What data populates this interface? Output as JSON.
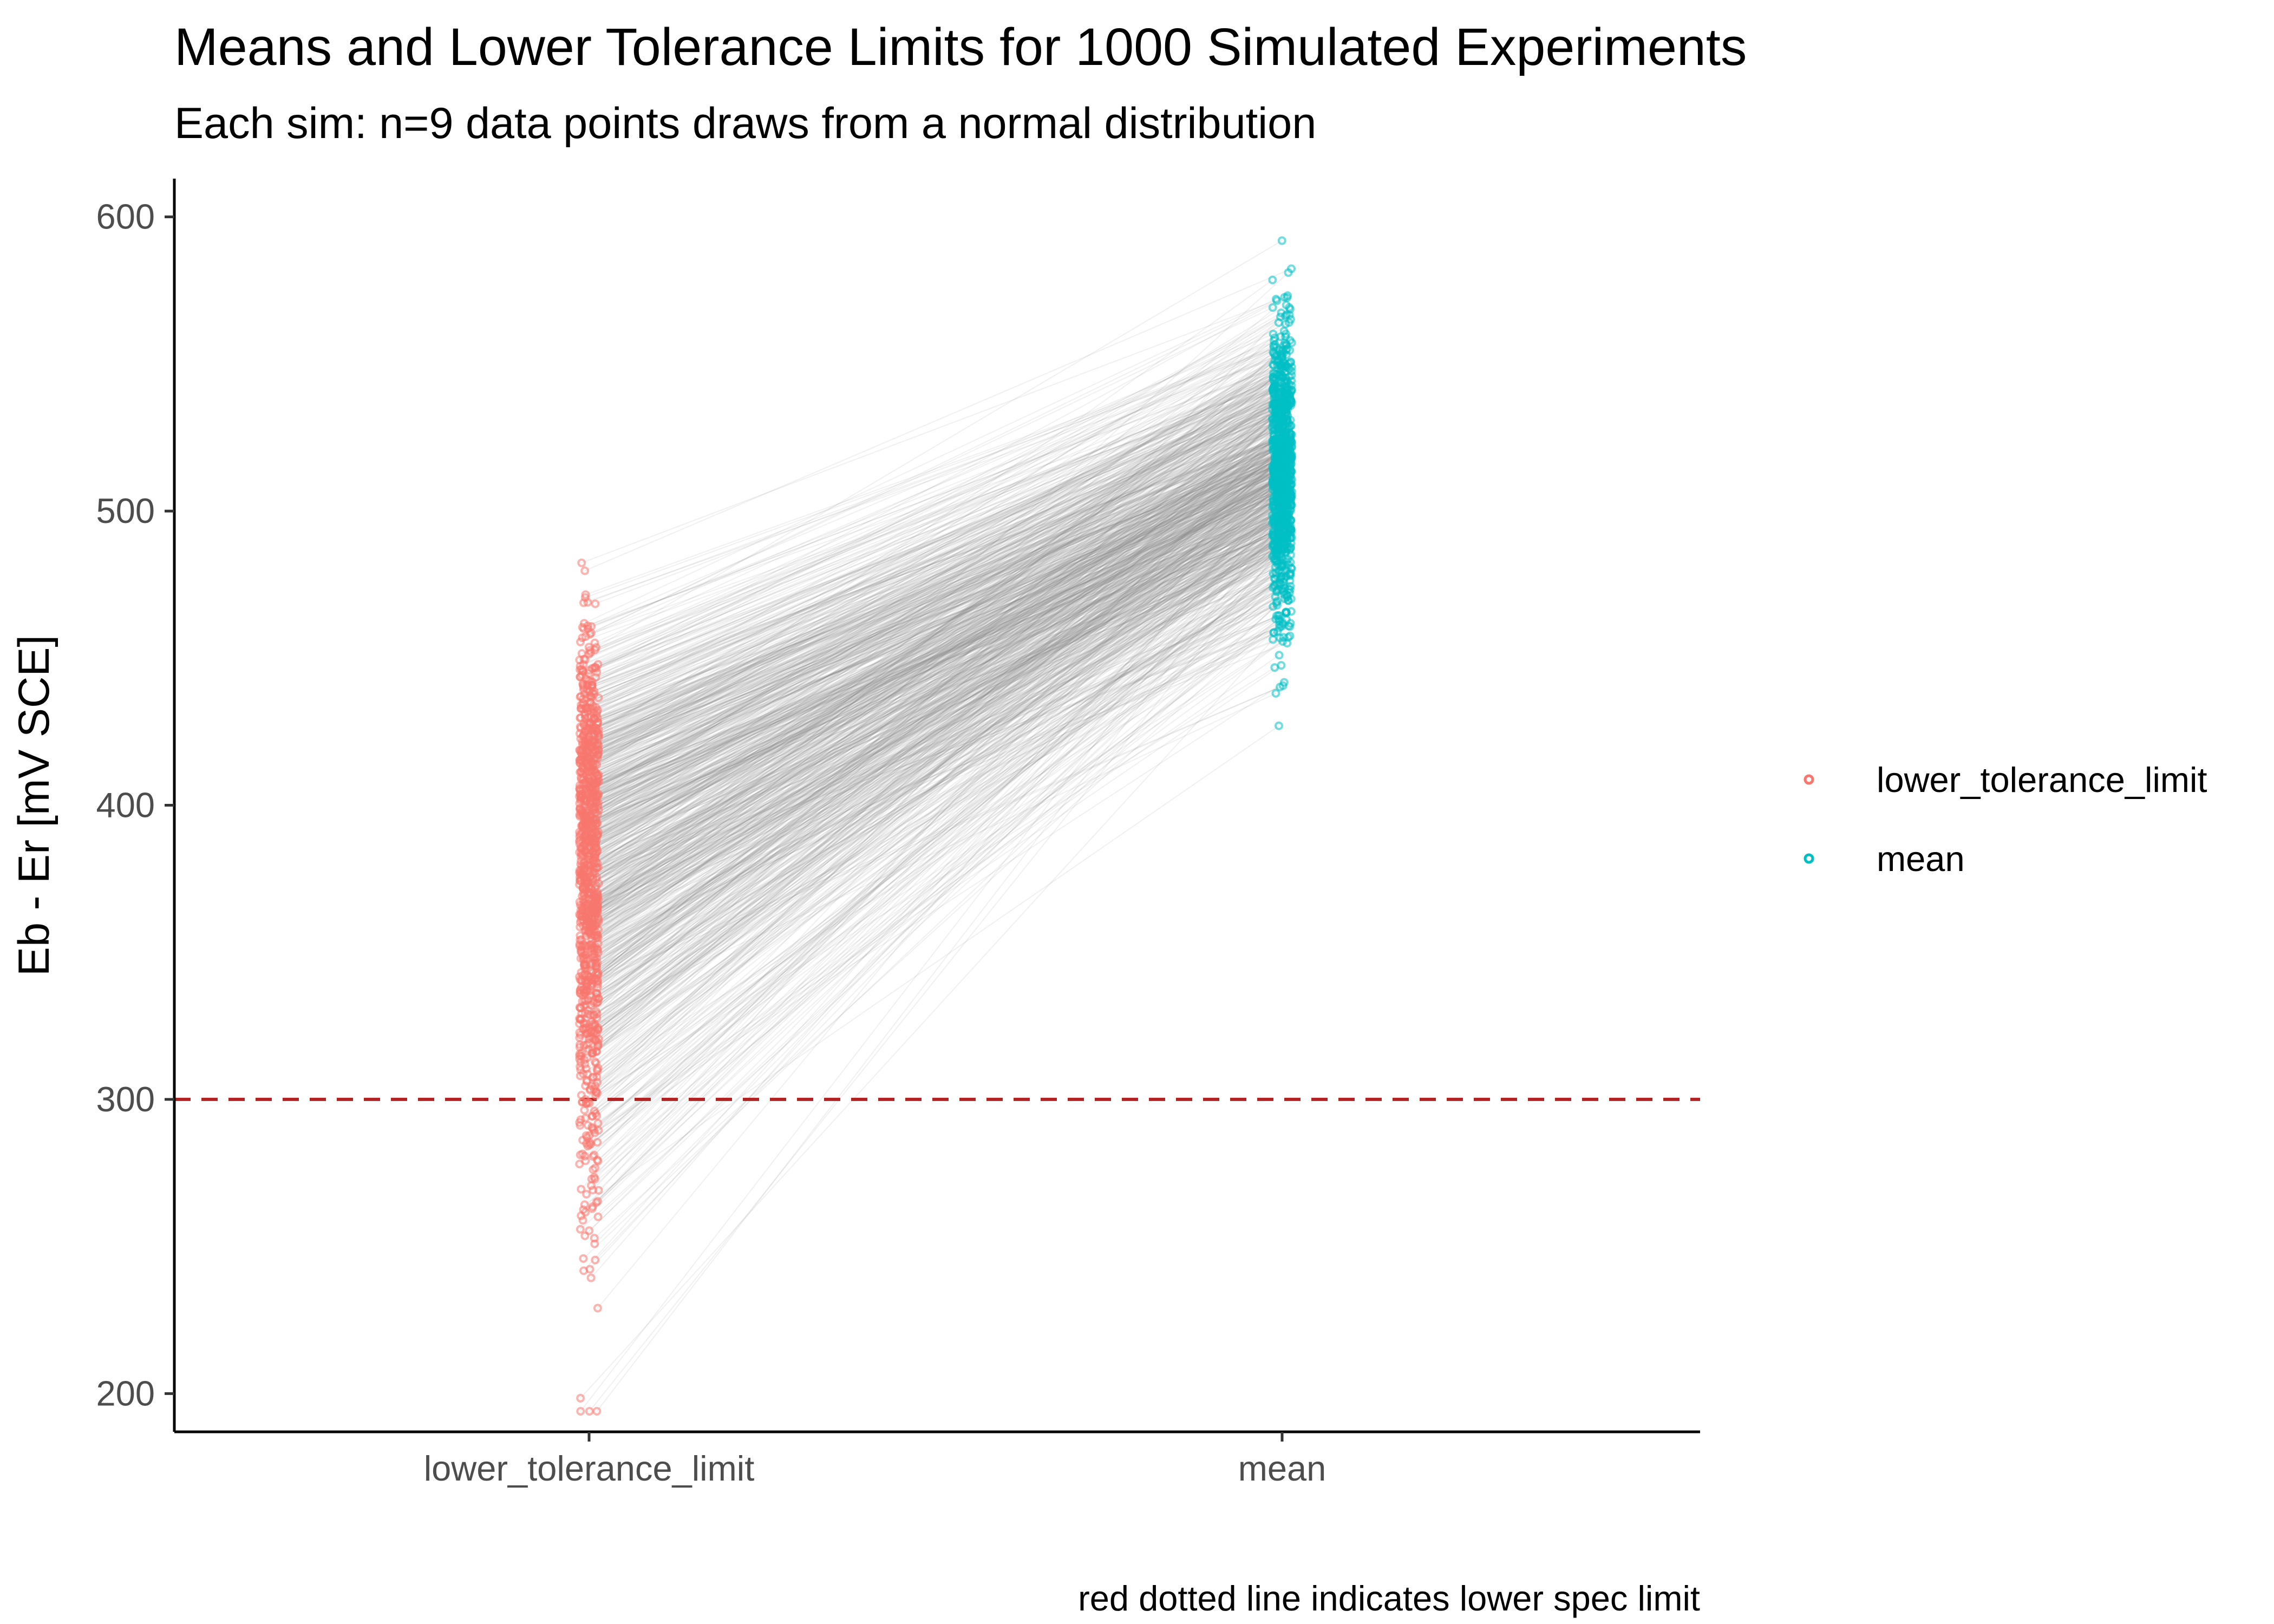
{
  "chart_data": {
    "type": "scatter",
    "title": "Means and Lower Tolerance Limits for 1000 Simulated Experiments",
    "subtitle": "Each sim: n=9 data points draws from a normal distribution",
    "caption": "red dotted line indicates lower spec limit",
    "xlabel": "",
    "ylabel": "Eb - Er [mV SCE]",
    "categories": [
      "lower_tolerance_limit",
      "mean"
    ],
    "y_ticks": [
      200,
      300,
      400,
      500,
      600
    ],
    "ylim": [
      187,
      613
    ],
    "grid": false,
    "legend_position": "right",
    "reference_line": {
      "y": 300,
      "color": "#B22222",
      "style": "dashed"
    },
    "n_simulations": 1000,
    "paired_lines": {
      "color": "#808080",
      "opacity": 0.12
    },
    "series": [
      {
        "name": "lower_tolerance_limit",
        "color": "#F8766D",
        "summary": {
          "approx_center": 355,
          "min": 194,
          "max": 496
        }
      },
      {
        "name": "mean",
        "color": "#00BFC4",
        "summary": {
          "approx_center": 513,
          "min": 427,
          "max": 594
        }
      }
    ]
  }
}
